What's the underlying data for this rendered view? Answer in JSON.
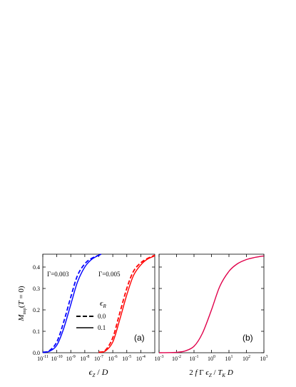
{
  "chart_data": [
    {
      "type": "line",
      "panel_label": "(a)",
      "xscale": "log",
      "xlim": [
        1e-11,
        0.001
      ],
      "ylim": [
        0.0,
        0.46
      ],
      "xlabel": "ε_Z / D",
      "ylabel": "M_imp(T = 0)",
      "xticks": [
        "10^-11",
        "10^-10",
        "10^-9",
        "10^-8",
        "10^-7",
        "10^-6",
        "10^-5",
        "10^-4"
      ],
      "yticks": [
        "0.0",
        "0.1",
        "0.2",
        "0.3",
        "0.4"
      ],
      "legend": {
        "title": "ε_R",
        "placement": "center-right",
        "entries": [
          "0.0",
          "0.1"
        ],
        "styles": [
          "dashed",
          "solid"
        ]
      },
      "annotations": [
        "Γ=0.003",
        "Γ=0.005"
      ],
      "colors": {
        "gamma_0.003": "#0000ff",
        "gamma_0.005": "#ff0000"
      },
      "series": [
        {
          "group": "Γ=0.003",
          "eps_R": "0.0",
          "style": "dashed",
          "color": "#0000ff",
          "x": [
            1e-11,
            3e-11,
            1e-10,
            3e-10,
            1e-09,
            3e-09,
            1e-08,
            3e-08,
            1e-07,
            1.5e-07
          ],
          "y": [
            0.002,
            0.01,
            0.05,
            0.14,
            0.26,
            0.36,
            0.415,
            0.44,
            0.455,
            0.46
          ]
        },
        {
          "group": "Γ=0.003",
          "eps_R": "0.1",
          "style": "solid",
          "color": "#0000ff",
          "x": [
            1e-11,
            3e-11,
            1e-10,
            3e-10,
            1e-09,
            3e-09,
            1e-08,
            3e-08,
            1e-07,
            1.5e-07
          ],
          "y": [
            0.001,
            0.007,
            0.035,
            0.11,
            0.225,
            0.33,
            0.4,
            0.435,
            0.455,
            0.46
          ]
        },
        {
          "group": "Γ=0.005",
          "eps_R": "0.0",
          "style": "dashed",
          "color": "#ff0000",
          "x": [
            1e-07,
            3e-07,
            1e-06,
            3e-06,
            1e-05,
            3e-05,
            0.0001,
            0.0003,
            0.001
          ],
          "y": [
            0.002,
            0.012,
            0.07,
            0.18,
            0.3,
            0.38,
            0.42,
            0.44,
            0.455
          ]
        },
        {
          "group": "Γ=0.005",
          "eps_R": "0.1",
          "style": "solid",
          "color": "#ff0000",
          "x": [
            1e-07,
            3e-07,
            1e-06,
            3e-06,
            1e-05,
            3e-05,
            0.0001,
            0.0003,
            0.001
          ],
          "y": [
            0.001,
            0.008,
            0.05,
            0.15,
            0.27,
            0.36,
            0.41,
            0.437,
            0.452
          ]
        }
      ]
    },
    {
      "type": "line",
      "panel_label": "(b)",
      "xscale": "log",
      "xlim": [
        0.001,
        1000
      ],
      "ylim": [
        0.0,
        0.46
      ],
      "xlabel": "2 f Γ ε_Z / T_K D",
      "xticks": [
        "10^-3",
        "10^-2",
        "10^-1",
        "10^0",
        "10^1",
        "10^2",
        "10^3"
      ],
      "colors": {
        "curve": "#e0004a"
      },
      "series": [
        {
          "style": "solid",
          "color": "#e0004a",
          "x": [
            0.001,
            0.01,
            0.03,
            0.1,
            0.3,
            1,
            3,
            10,
            30,
            100,
            300,
            1000
          ],
          "y": [
            0.0,
            0.002,
            0.008,
            0.03,
            0.09,
            0.2,
            0.31,
            0.38,
            0.415,
            0.435,
            0.445,
            0.452
          ]
        }
      ]
    }
  ]
}
